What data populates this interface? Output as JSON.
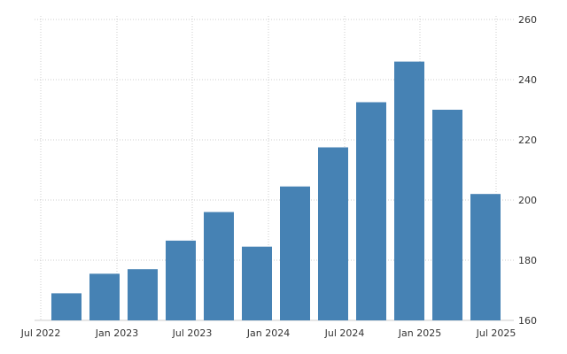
{
  "chart_data": {
    "type": "bar",
    "title": "",
    "xlabel": "",
    "ylabel": "",
    "ylim": [
      160,
      260
    ],
    "yticks": [
      260,
      240,
      220,
      200,
      180,
      160
    ],
    "y_axis_position": "right",
    "grid": true,
    "legend": "none",
    "colors": {
      "bar": "#4682b4",
      "grid": "#cccccc",
      "text": "#333333"
    },
    "categories": [
      "Q3 2022",
      "Q4 2022",
      "Q1 2023",
      "Q2 2023",
      "Q3 2023",
      "Q4 2023",
      "Q1 2024",
      "Q2 2024",
      "Q3 2024",
      "Q4 2024",
      "Q1 2025",
      "Q2 2025"
    ],
    "values": [
      169,
      175.5,
      177,
      186.5,
      196,
      184.5,
      204.5,
      217.5,
      232.5,
      246,
      230,
      202
    ],
    "x_tick_labels": [
      "Jul 2022",
      "Jan 2023",
      "Jul 2023",
      "Jan 2024",
      "Jul 2024",
      "Jan 2025",
      "Jul 2025"
    ]
  }
}
